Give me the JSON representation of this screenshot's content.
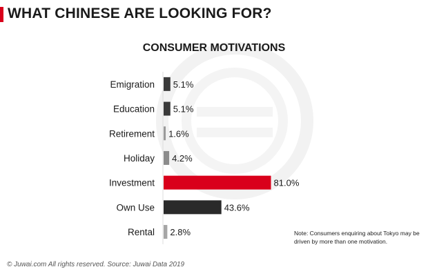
{
  "page": {
    "title": "WHAT CHINESE ARE LOOKING FOR?",
    "note": "Note: Consumers enquiring about Tokyo may be driven by more than one motivation.",
    "footer": "© Juwai.com All rights reserved. Source: Juwai Data 2019",
    "accent_color": "#d9001b"
  },
  "chart_data": {
    "type": "bar",
    "orientation": "horizontal",
    "title": "CONSUMER MOTIVATIONS",
    "xlabel": "",
    "ylabel": "",
    "xlim": [
      0,
      100
    ],
    "grid": false,
    "legend": "none",
    "value_suffix": "%",
    "categories": [
      "Emigration",
      "Education",
      "Retirement",
      "Holiday",
      "Investment",
      "Own Use",
      "Rental"
    ],
    "values": [
      5.1,
      5.1,
      1.6,
      4.2,
      81.0,
      43.6,
      2.8
    ],
    "labels": [
      "5.1%",
      "5.1%",
      "1.6%",
      "4.2%",
      "81.0%",
      "43.6%",
      "2.8%"
    ],
    "colors": [
      "#3a3a3a",
      "#3a3a3a",
      "#9a9a9a",
      "#8c8c8c",
      "#d9001b",
      "#2a2a2a",
      "#a6a6a6"
    ]
  }
}
